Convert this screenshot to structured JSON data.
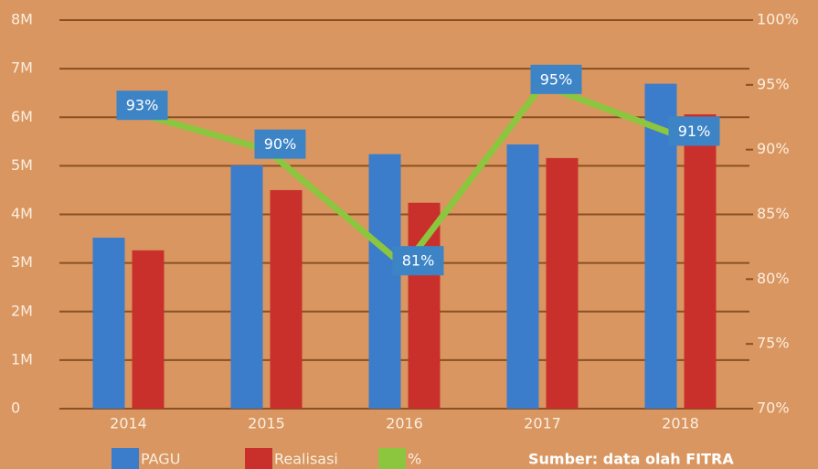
{
  "chart_data": {
    "type": "bar",
    "categories": [
      "2014",
      "2015",
      "2016",
      "2017",
      "2018"
    ],
    "series": [
      {
        "name": "PAGU",
        "color": "#3b7ccb",
        "values": [
          3520000,
          5010000,
          5240000,
          5440000,
          6690000
        ]
      },
      {
        "name": "Realisasi",
        "color": "#c9302c",
        "values": [
          3260000,
          4500000,
          4240000,
          5160000,
          6060000
        ]
      },
      {
        "name": "%",
        "type": "line",
        "axis": "y2",
        "color": "#8cc63f",
        "values": [
          93,
          90,
          81,
          95,
          91
        ],
        "value_labels": [
          "93%",
          "90%",
          "81%",
          "95%",
          "91%"
        ]
      }
    ],
    "ylim": [
      0,
      8000000
    ],
    "yticks": [
      0,
      {
        "value": 1000000,
        "label": "1M"
      },
      {
        "value": 2000000,
        "label": "2M"
      },
      {
        "value": 3000000,
        "label": "3M"
      },
      {
        "value": 4000000,
        "label": "4M"
      },
      {
        "value": 5000000,
        "label": "5M"
      },
      {
        "value": 6000000,
        "label": "6M"
      },
      {
        "value": 7000000,
        "label": "7M"
      },
      {
        "value": 8000000,
        "label": "8M"
      }
    ],
    "y2lim": [
      70,
      100
    ],
    "y2ticks": [
      {
        "value": 70,
        "label": "70%"
      },
      {
        "value": 75,
        "label": "75%"
      },
      {
        "value": 80,
        "label": "80%"
      },
      {
        "value": 85,
        "label": "85%"
      },
      {
        "value": 90,
        "label": "90%"
      },
      {
        "value": 95,
        "label": "95%"
      },
      {
        "value": 100,
        "label": "100%"
      }
    ],
    "grid": true,
    "source": "Sumber: data olah FITRA"
  }
}
